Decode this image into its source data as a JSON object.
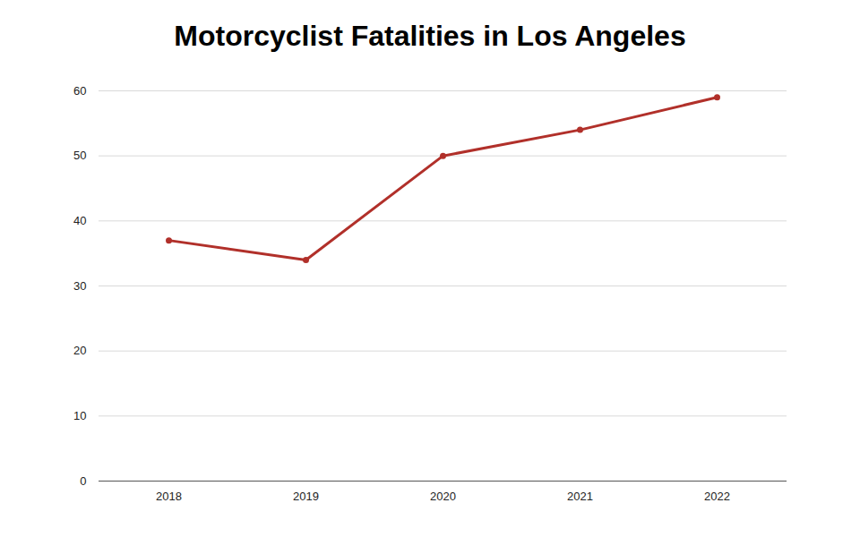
{
  "chart_data": {
    "type": "line",
    "title": "Motorcyclist Fatalities in Los Angeles",
    "categories": [
      "2018",
      "2019",
      "2020",
      "2021",
      "2022"
    ],
    "values": [
      37,
      34,
      50,
      54,
      59
    ],
    "color": "#b1302a",
    "marker": "circle",
    "ylim": [
      0,
      60
    ],
    "yticks": [
      0,
      10,
      20,
      30,
      40,
      50,
      60
    ],
    "grid": true
  }
}
